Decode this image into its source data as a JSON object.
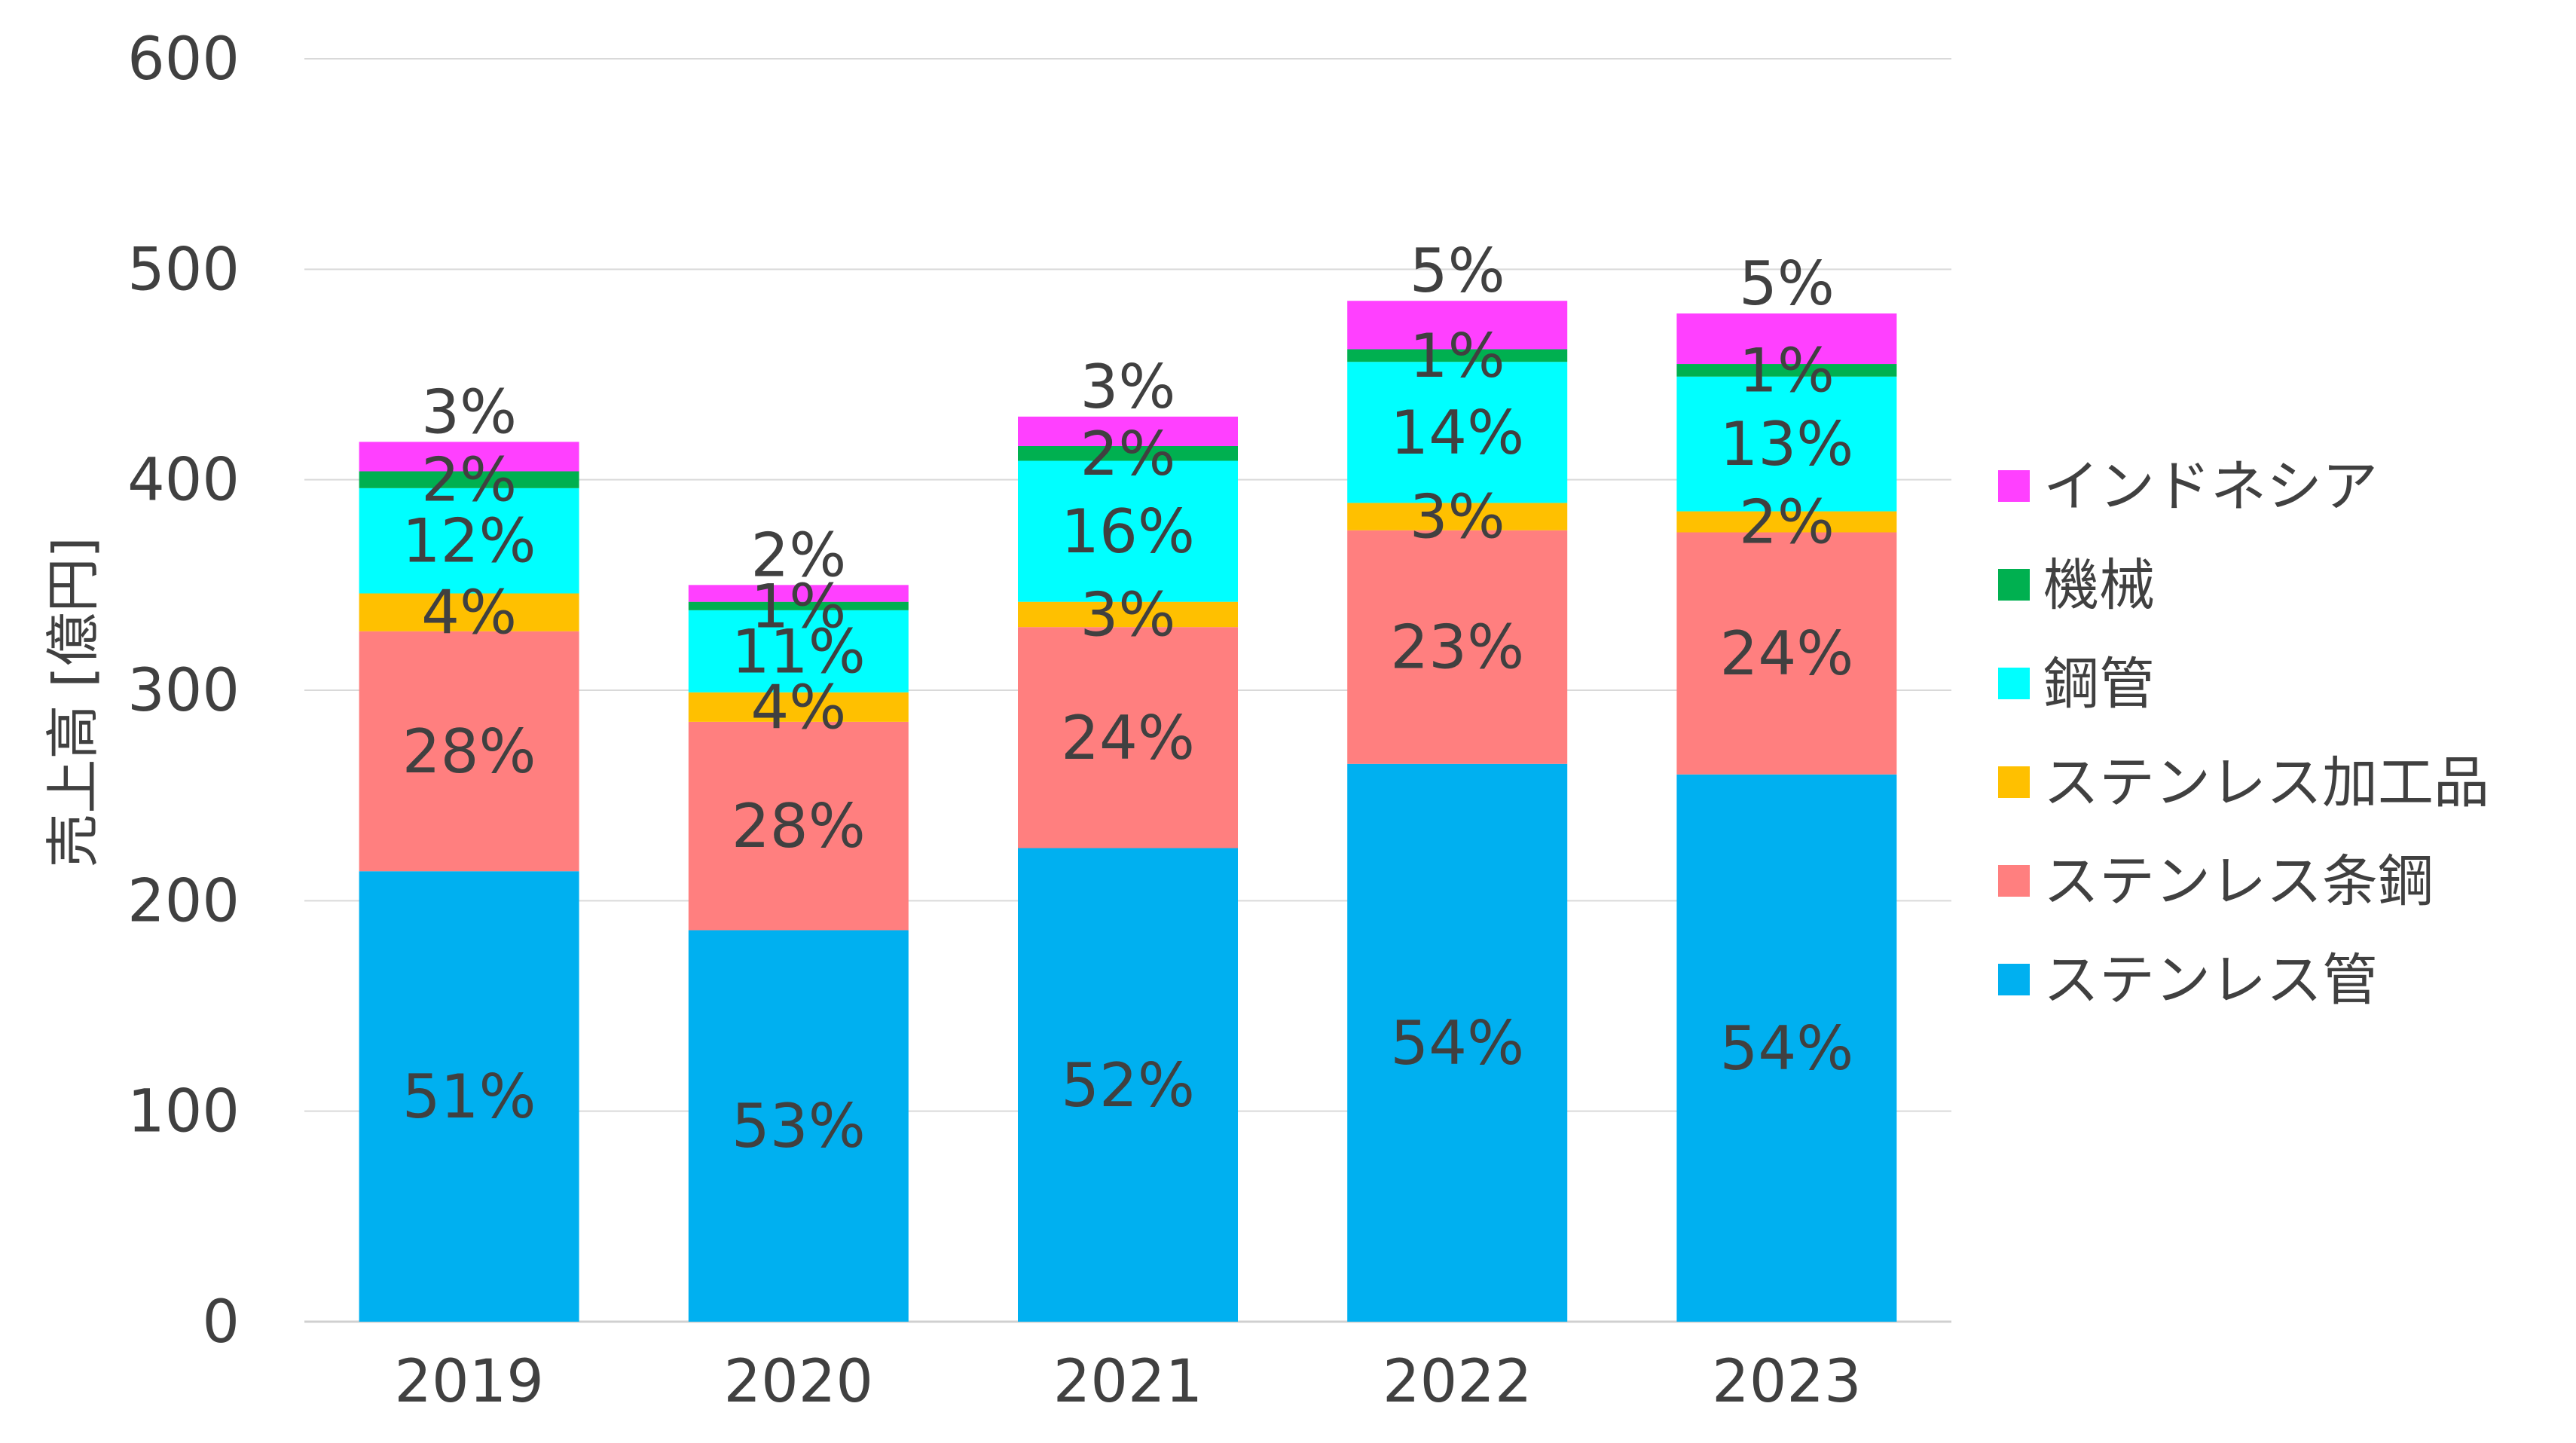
{
  "chart_data": {
    "type": "bar",
    "stacked": true,
    "categories": [
      "2019",
      "2020",
      "2021",
      "2022",
      "2023"
    ],
    "ylabel": "売上高 [億円]",
    "xlabel": "",
    "ylim": [
      0,
      600
    ],
    "yticks": [
      "0",
      "100",
      "200",
      "300",
      "400",
      "500",
      "600"
    ],
    "grid": true,
    "legend_position": "right",
    "series": [
      {
        "name": "ステンレス管",
        "color": "#00B0F0",
        "values": [
          214,
          186,
          225,
          265,
          260
        ],
        "labels": [
          "51%",
          "53%",
          "52%",
          "54%",
          "54%"
        ]
      },
      {
        "name": "ステンレス条鋼",
        "color": "#FF7F7F",
        "values": [
          114,
          99,
          105,
          111,
          115
        ],
        "labels": [
          "28%",
          "28%",
          "24%",
          "23%",
          "24%"
        ]
      },
      {
        "name": "ステンレス加工品",
        "color": "#FFC000",
        "values": [
          18,
          14,
          12,
          13,
          10
        ],
        "labels": [
          "4%",
          "4%",
          "3%",
          "3%",
          "2%"
        ]
      },
      {
        "name": "鋼管",
        "color": "#00FFFF",
        "values": [
          50,
          39,
          67,
          67,
          64
        ],
        "labels": [
          "12%",
          "11%",
          "16%",
          "14%",
          "13%"
        ]
      },
      {
        "name": "機械",
        "color": "#00B050",
        "values": [
          8,
          4,
          7,
          6,
          6
        ],
        "labels": [
          "2%",
          "1%",
          "2%",
          "1%",
          "1%"
        ]
      },
      {
        "name": "インドネシア",
        "color": "#FF40FF",
        "values": [
          14,
          8,
          14,
          23,
          24
        ],
        "labels": [
          "3%",
          "2%",
          "3%",
          "5%",
          "5%"
        ]
      }
    ]
  }
}
